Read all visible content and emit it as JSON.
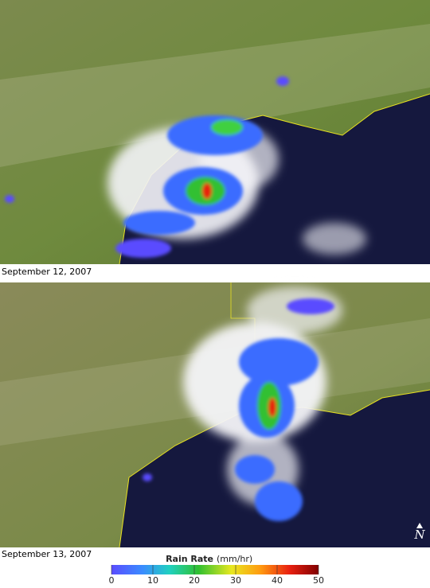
{
  "panels": [
    {
      "caption": "September 12, 2007"
    },
    {
      "caption": "September 13, 2007"
    }
  ],
  "north_label": "N",
  "legend": {
    "title": "Rain Rate",
    "unit": "(mm/hr)",
    "range": [
      0,
      50
    ],
    "ticks": [
      0,
      10,
      20,
      30,
      40,
      50
    ]
  }
}
